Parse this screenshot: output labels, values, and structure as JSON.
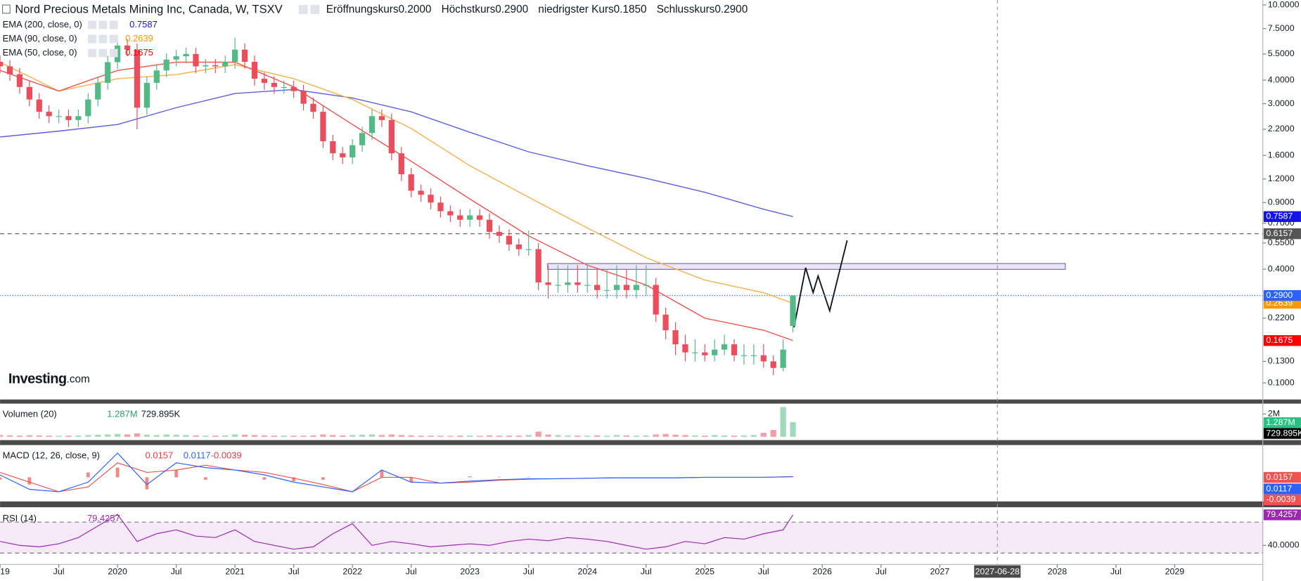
{
  "chart_data": {
    "type": "candlestick",
    "title": "Nord Precious Metals Mining Inc, Canada, W, TSXV",
    "ohlc_legend": [
      {
        "label": "Eröffnungskurs",
        "value": "0.2000"
      },
      {
        "label": "Höchstkurs",
        "value": "0.2900"
      },
      {
        "label": "niedrigster Kurs",
        "value": "0.1850"
      },
      {
        "label": "Schlusskurs",
        "value": "0.2900"
      }
    ],
    "logo": {
      "brand": "Investing",
      "suffix": ".com"
    },
    "up_color": "#53b987",
    "down_color": "#eb4d5c",
    "x": [
      "2019-01",
      "2019-02",
      "2019-03",
      "2019-04",
      "2019-05",
      "2019-06",
      "2019-07",
      "2019-08",
      "2019-09",
      "2019-10",
      "2019-11",
      "2019-12",
      "2020-01",
      "2020-02",
      "2020-03",
      "2020-04",
      "2020-05",
      "2020-06",
      "2020-07",
      "2020-08",
      "2020-09",
      "2020-10",
      "2020-11",
      "2020-12",
      "2021-01",
      "2021-02",
      "2021-03",
      "2021-04",
      "2021-05",
      "2021-06",
      "2021-07",
      "2021-08",
      "2021-09",
      "2021-10",
      "2021-11",
      "2021-12",
      "2022-01",
      "2022-02",
      "2022-03",
      "2022-04",
      "2022-05",
      "2022-06",
      "2022-07",
      "2022-08",
      "2022-09",
      "2022-10",
      "2022-11",
      "2022-12",
      "2023-01",
      "2023-02",
      "2023-03",
      "2023-04",
      "2023-05",
      "2023-06",
      "2023-07",
      "2023-08",
      "2023-09",
      "2023-10",
      "2023-11",
      "2023-12",
      "2024-01",
      "2024-02",
      "2024-03",
      "2024-04",
      "2024-05",
      "2024-06",
      "2024-07",
      "2024-08",
      "2024-09",
      "2024-10",
      "2024-11",
      "2024-12",
      "2025-01",
      "2025-02",
      "2025-03",
      "2025-04",
      "2025-05",
      "2025-06",
      "2025-07",
      "2025-08",
      "2025-09",
      "2025-10"
    ],
    "open": [
      5.0,
      4.73,
      4.3,
      3.68,
      3.16,
      2.72,
      2.58,
      2.58,
      2.46,
      2.58,
      3.16,
      3.87,
      4.98,
      6.1,
      5.8,
      2.86,
      3.87,
      4.5,
      5.14,
      5.35,
      5.5,
      4.73,
      4.8,
      4.73,
      5.0,
      5.8,
      5.0,
      4.07,
      3.87,
      3.68,
      3.68,
      3.5,
      3.0,
      2.72,
      1.9,
      1.64,
      1.56,
      1.81,
      2.1,
      2.58,
      2.46,
      1.64,
      1.27,
      1.04,
      0.99,
      0.9,
      0.81,
      0.77,
      0.73,
      0.77,
      0.73,
      0.63,
      0.6,
      0.54,
      0.51,
      0.51,
      0.34,
      0.33,
      0.33,
      0.34,
      0.33,
      0.33,
      0.31,
      0.31,
      0.33,
      0.31,
      0.33,
      0.33,
      0.23,
      0.19,
      0.16,
      0.145,
      0.145,
      0.14,
      0.15,
      0.16,
      0.14,
      0.14,
      0.14,
      0.13,
      0.12,
      0.2
    ],
    "high": [
      5.4,
      5.1,
      4.64,
      3.97,
      3.41,
      2.94,
      2.79,
      2.79,
      2.79,
      3.41,
      4.18,
      5.38,
      6.59,
      6.59,
      6.26,
      4.18,
      4.86,
      5.55,
      5.78,
      5.94,
      5.94,
      5.18,
      5.18,
      5.4,
      6.7,
      6.26,
      5.4,
      4.4,
      4.18,
      3.97,
      3.97,
      3.78,
      3.24,
      2.94,
      2.05,
      1.77,
      1.95,
      2.27,
      2.8,
      2.79,
      2.66,
      1.77,
      1.37,
      1.12,
      1.07,
      0.97,
      0.87,
      0.83,
      0.83,
      0.83,
      0.79,
      0.68,
      0.65,
      0.58,
      0.64,
      0.55,
      0.42,
      0.42,
      0.42,
      0.42,
      0.42,
      0.4,
      0.4,
      0.42,
      0.4,
      0.42,
      0.42,
      0.36,
      0.25,
      0.21,
      0.18,
      0.17,
      0.16,
      0.17,
      0.18,
      0.17,
      0.16,
      0.16,
      0.16,
      0.14,
      0.17,
      0.29
    ],
    "low": [
      4.35,
      3.96,
      3.39,
      2.91,
      2.5,
      2.37,
      2.37,
      2.26,
      2.26,
      2.37,
      2.91,
      3.56,
      4.58,
      5.34,
      2.2,
      2.63,
      3.56,
      4.14,
      4.73,
      4.92,
      4.35,
      4.35,
      4.35,
      4.35,
      4.6,
      4.6,
      3.74,
      3.56,
      3.39,
      3.39,
      3.22,
      2.76,
      2.5,
      1.75,
      1.51,
      1.44,
      1.44,
      1.67,
      1.93,
      2.26,
      1.51,
      1.17,
      0.96,
      0.91,
      0.83,
      0.75,
      0.71,
      0.67,
      0.67,
      0.67,
      0.58,
      0.55,
      0.5,
      0.47,
      0.47,
      0.31,
      0.28,
      0.3,
      0.3,
      0.3,
      0.3,
      0.28,
      0.28,
      0.28,
      0.28,
      0.28,
      0.29,
      0.21,
      0.17,
      0.14,
      0.13,
      0.13,
      0.13,
      0.13,
      0.14,
      0.13,
      0.125,
      0.125,
      0.12,
      0.11,
      0.115,
      0.185
    ],
    "close": [
      4.73,
      4.3,
      3.68,
      3.16,
      2.72,
      2.58,
      2.58,
      2.46,
      2.58,
      3.16,
      3.87,
      4.98,
      6.1,
      5.8,
      2.86,
      3.87,
      4.5,
      5.14,
      5.35,
      5.5,
      4.73,
      4.8,
      4.73,
      5.0,
      5.8,
      5.0,
      4.07,
      3.87,
      3.68,
      3.68,
      3.5,
      3.0,
      2.72,
      1.9,
      1.64,
      1.56,
      1.81,
      2.1,
      2.58,
      2.46,
      1.64,
      1.27,
      1.04,
      0.99,
      0.9,
      0.81,
      0.77,
      0.73,
      0.77,
      0.73,
      0.63,
      0.6,
      0.54,
      0.51,
      0.51,
      0.34,
      0.33,
      0.33,
      0.34,
      0.33,
      0.33,
      0.31,
      0.31,
      0.33,
      0.31,
      0.33,
      0.33,
      0.23,
      0.19,
      0.16,
      0.145,
      0.145,
      0.14,
      0.15,
      0.16,
      0.14,
      0.14,
      0.14,
      0.13,
      0.12,
      0.15,
      0.29
    ],
    "log": true,
    "ylim": [
      0.0817,
      10.62
    ],
    "yticks": [
      {
        "value": 10,
        "label": "10.0000"
      },
      {
        "value": 7.5,
        "label": "7.5000"
      },
      {
        "value": 5.5,
        "label": "5.5000"
      },
      {
        "value": 4,
        "label": "4.0000"
      },
      {
        "value": 3,
        "label": "3.0000"
      },
      {
        "value": 2.2,
        "label": "2.2000"
      },
      {
        "value": 1.6,
        "label": "1.6000"
      },
      {
        "value": 1.2,
        "label": "1.2000"
      },
      {
        "value": 0.9,
        "label": "0.9000"
      },
      {
        "value": 0.7,
        "label": "0.7000"
      },
      {
        "value": 0.55,
        "label": "0.5500"
      },
      {
        "value": 0.4,
        "label": "0.4000"
      },
      {
        "value": 0.22,
        "label": "0.2200"
      },
      {
        "value": 0.13,
        "label": "0.1300"
      },
      {
        "value": 0.1,
        "label": "0.1000"
      }
    ],
    "xlim": [
      "2019-01",
      "2029-10"
    ],
    "xticks": [
      {
        "value": "2019-01",
        "label": "2019"
      },
      {
        "value": "2019-07",
        "label": "Jul"
      },
      {
        "value": "2020-01",
        "label": "2020"
      },
      {
        "value": "2020-07",
        "label": "Jul"
      },
      {
        "value": "2021-01",
        "label": "2021"
      },
      {
        "value": "2021-07",
        "label": "Jul"
      },
      {
        "value": "2022-01",
        "label": "2022"
      },
      {
        "value": "2022-07",
        "label": "Jul"
      },
      {
        "value": "2023-01",
        "label": "2023"
      },
      {
        "value": "2023-07",
        "label": "Jul"
      },
      {
        "value": "2024-01",
        "label": "2024"
      },
      {
        "value": "2024-07",
        "label": "Jul"
      },
      {
        "value": "2025-01",
        "label": "2025"
      },
      {
        "value": "2025-07",
        "label": "Jul"
      },
      {
        "value": "2026-01",
        "label": "2026"
      },
      {
        "value": "2026-07",
        "label": "Jul"
      },
      {
        "value": "2027-01",
        "label": "2027"
      },
      {
        "value": "2028-01",
        "label": "2028"
      },
      {
        "value": "2028-07",
        "label": "Jul"
      },
      {
        "value": "2029-01",
        "label": "2029"
      }
    ],
    "crosshair": "2027-06-28",
    "last_price": {
      "value": 0.29,
      "label": "0.2900",
      "color": "#2962ff"
    },
    "hlines": [
      {
        "value": 0.6157,
        "color": "#555555"
      }
    ],
    "overlays": {
      "x": [
        "2019-01",
        "2019-07",
        "2020-01",
        "2020-07",
        "2021-01",
        "2021-07",
        "2022-01",
        "2022-07",
        "2023-01",
        "2023-07",
        "2024-01",
        "2024-07",
        "2025-01",
        "2025-07",
        "2025-10"
      ],
      "series": [
        {
          "name": "EMA (200, close, 0)",
          "color": "#5b5fe0",
          "label_color": "#1414e6",
          "values": [
            2.0,
            2.15,
            2.33,
            2.86,
            3.4,
            3.57,
            3.22,
            2.72,
            2.12,
            1.67,
            1.41,
            1.21,
            1.02,
            0.83,
            0.7587
          ]
        },
        {
          "name": "EMA (90, close, 0)",
          "color": "#f7b14a",
          "label_color": "#ff9800",
          "values": [
            4.98,
            3.5,
            4.07,
            4.28,
            4.83,
            4.07,
            3.16,
            2.22,
            1.41,
            0.96,
            0.66,
            0.46,
            0.35,
            0.3,
            0.2639
          ]
        },
        {
          "name": "EMA (50, close, 0)",
          "color": "#f0524f",
          "label_color": "#ff0000",
          "values": [
            4.5,
            3.5,
            4.5,
            4.98,
            4.98,
            3.68,
            2.33,
            1.49,
            0.94,
            0.6,
            0.42,
            0.33,
            0.22,
            0.19,
            0.1675
          ]
        }
      ]
    },
    "volume": {
      "name": "Volumen (20)",
      "values": [
        150000,
        120000,
        100000,
        130000,
        110000,
        100000,
        90000,
        100000,
        110000,
        150000,
        180000,
        200000,
        250000,
        200000,
        300000,
        180000,
        150000,
        200000,
        180000,
        150000,
        120000,
        100000,
        100000,
        120000,
        200000,
        180000,
        150000,
        120000,
        100000,
        100000,
        90000,
        100000,
        120000,
        200000,
        150000,
        120000,
        150000,
        180000,
        200000,
        150000,
        200000,
        150000,
        120000,
        100000,
        100000,
        90000,
        80000,
        100000,
        100000,
        90000,
        120000,
        100000,
        100000,
        100000,
        150000,
        450000,
        200000,
        150000,
        120000,
        100000,
        100000,
        120000,
        100000,
        150000,
        120000,
        100000,
        120000,
        200000,
        250000,
        180000,
        150000,
        120000,
        100000,
        150000,
        120000,
        100000,
        120000,
        150000,
        350000,
        600000,
        2600000,
        1287000
      ],
      "ylim": [
        0,
        2900000
      ],
      "yticks": [
        {
          "value": 2000000,
          "label": "2M"
        }
      ],
      "current": {
        "value": 1287000,
        "label": "1.287M",
        "color": "#26c281"
      },
      "average": {
        "value": 729895,
        "label": "729.895K",
        "color": "#000000"
      }
    },
    "macd": {
      "name": "MACD (12, 26, close, 9)",
      "x": [
        "2019-01",
        "2019-04",
        "2019-07",
        "2019-10",
        "2020-01",
        "2020-04",
        "2020-07",
        "2020-10",
        "2021-01",
        "2021-04",
        "2021-07",
        "2021-10",
        "2022-01",
        "2022-04",
        "2022-07",
        "2022-10",
        "2023-01",
        "2023-04",
        "2023-07",
        "2023-10",
        "2024-01",
        "2024-04",
        "2024-07",
        "2024-10",
        "2025-01",
        "2025-04",
        "2025-07",
        "2025-10"
      ],
      "ylim": [
        -0.5,
        0.65
      ],
      "histogram": {
        "color": "#f0524f",
        "values": [
          -0.05,
          -0.15,
          0,
          0.1,
          0.2,
          -0.25,
          0.15,
          -0.05,
          0,
          -0.05,
          -0.08,
          -0.05,
          0,
          0.15,
          -0.1,
          0,
          0.02,
          0.01,
          0.01,
          0,
          0,
          0,
          0,
          0,
          0,
          0,
          0,
          -0.0039
        ]
      },
      "series": [
        {
          "color": "#f0524f",
          "values": [
            0.1,
            -0.1,
            -0.3,
            -0.2,
            0.3,
            0.1,
            0.15,
            0.25,
            0.15,
            0.1,
            -0.02,
            -0.15,
            -0.3,
            0,
            0,
            -0.12,
            -0.1,
            -0.06,
            -0.04,
            -0.03,
            -0.02,
            -0.01,
            -0.01,
            -0.01,
            0,
            0,
            0,
            0.0157
          ]
        },
        {
          "color": "#2962ff",
          "values": [
            0.05,
            -0.25,
            -0.3,
            -0.1,
            0.5,
            -0.15,
            0.3,
            0.2,
            0.15,
            0.05,
            -0.1,
            -0.2,
            -0.3,
            0.15,
            -0.1,
            -0.12,
            -0.08,
            -0.05,
            -0.03,
            -0.03,
            -0.02,
            -0.01,
            -0.01,
            -0.01,
            0,
            0,
            0,
            0.0117
          ]
        }
      ]
    },
    "rsi": {
      "name": "RSI (14)",
      "color": "#9c27b0",
      "x": [
        "2019-01",
        "2019-03",
        "2019-05",
        "2019-07",
        "2019-09",
        "2019-11",
        "2020-01",
        "2020-03",
        "2020-05",
        "2020-07",
        "2020-09",
        "2020-11",
        "2021-01",
        "2021-03",
        "2021-05",
        "2021-07",
        "2021-09",
        "2021-11",
        "2022-01",
        "2022-03",
        "2022-05",
        "2022-07",
        "2022-09",
        "2022-11",
        "2023-01",
        "2023-03",
        "2023-05",
        "2023-07",
        "2023-09",
        "2023-11",
        "2024-01",
        "2024-03",
        "2024-05",
        "2024-07",
        "2024-09",
        "2024-11",
        "2025-01",
        "2025-03",
        "2025-05",
        "2025-07",
        "2025-09",
        "2025-10"
      ],
      "values": [
        45,
        40,
        38,
        42,
        50,
        65,
        80,
        45,
        55,
        60,
        52,
        50,
        60,
        45,
        40,
        35,
        38,
        55,
        68,
        40,
        45,
        42,
        38,
        40,
        42,
        40,
        45,
        48,
        46,
        50,
        48,
        45,
        40,
        35,
        38,
        45,
        42,
        50,
        48,
        55,
        60,
        79.4257
      ],
      "ylim": [
        16.4,
        88.2
      ],
      "yticks": [
        {
          "value": 40,
          "label": "40.0000"
        }
      ],
      "bands": [
        30,
        70
      ]
    }
  }
}
